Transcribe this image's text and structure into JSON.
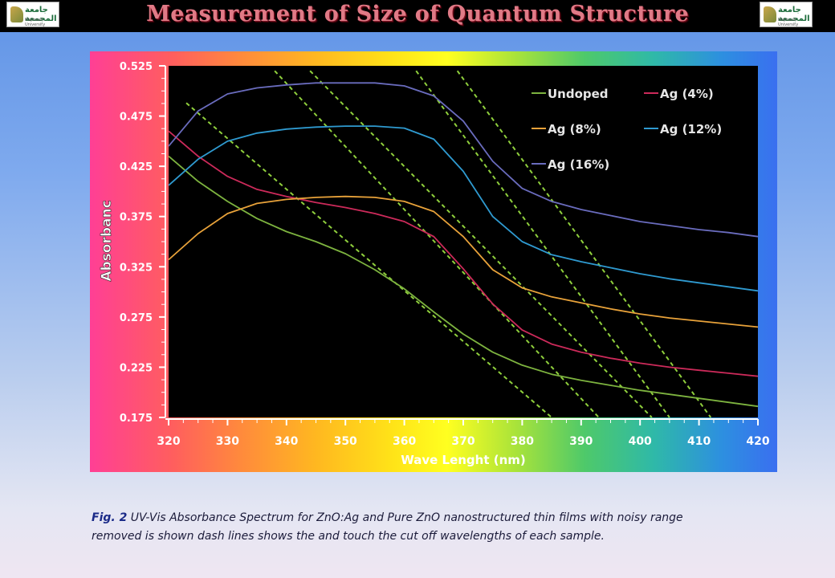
{
  "header": {
    "title": "Measurement of Size of Quantum Structure",
    "logo_text": "جامعة المجمعة",
    "logo_sub": "Majmaah University"
  },
  "chart_data": {
    "type": "line",
    "xlabel": "Wave Lenght  (nm)",
    "ylabel": "Absorbanc",
    "xlim": [
      320,
      420
    ],
    "ylim": [
      0.175,
      0.525
    ],
    "xticks": [
      "320",
      "330",
      "340",
      "350",
      "360",
      "370",
      "380",
      "390",
      "400",
      "410",
      "420"
    ],
    "yticks": [
      "0.525",
      "0.475",
      "0.425",
      "0.375",
      "0.325",
      "0.275",
      "0.225",
      "0.175"
    ],
    "legend_position": "top-right",
    "x": [
      320,
      325,
      330,
      335,
      340,
      345,
      350,
      355,
      360,
      365,
      370,
      375,
      380,
      385,
      390,
      395,
      400,
      405,
      410,
      415,
      420
    ],
    "series": [
      {
        "name": "Undoped",
        "color": "#7db33f",
        "values": [
          0.435,
          0.41,
          0.39,
          0.373,
          0.36,
          0.35,
          0.338,
          0.322,
          0.303,
          0.28,
          0.258,
          0.24,
          0.227,
          0.218,
          0.212,
          0.207,
          0.202,
          0.198,
          0.194,
          0.19,
          0.186
        ]
      },
      {
        "name": "Ag (4%)",
        "color": "#cc2a5a",
        "values": [
          0.46,
          0.435,
          0.415,
          0.402,
          0.395,
          0.389,
          0.384,
          0.378,
          0.37,
          0.355,
          0.323,
          0.288,
          0.262,
          0.248,
          0.24,
          0.234,
          0.229,
          0.225,
          0.222,
          0.219,
          0.216
        ]
      },
      {
        "name": "Ag (8%)",
        "color": "#e8a23a",
        "values": [
          0.332,
          0.358,
          0.378,
          0.388,
          0.392,
          0.394,
          0.395,
          0.394,
          0.39,
          0.38,
          0.355,
          0.322,
          0.304,
          0.295,
          0.289,
          0.283,
          0.278,
          0.274,
          0.271,
          0.268,
          0.265
        ]
      },
      {
        "name": "Ag (12%)",
        "color": "#2f9ad0",
        "values": [
          0.406,
          0.432,
          0.45,
          0.458,
          0.462,
          0.464,
          0.465,
          0.465,
          0.463,
          0.452,
          0.42,
          0.375,
          0.35,
          0.337,
          0.33,
          0.324,
          0.318,
          0.313,
          0.309,
          0.305,
          0.301
        ]
      },
      {
        "name": "Ag (16%)",
        "color": "#6a6cbe",
        "values": [
          0.445,
          0.48,
          0.497,
          0.503,
          0.506,
          0.508,
          0.508,
          0.508,
          0.505,
          0.495,
          0.47,
          0.43,
          0.403,
          0.39,
          0.382,
          0.376,
          0.37,
          0.366,
          0.362,
          0.359,
          0.355
        ]
      }
    ],
    "cutoff_lines": [
      {
        "x1": 323,
        "y1": 0.488,
        "x2": 385,
        "y2": 0.175
      },
      {
        "x1": 338,
        "y1": 0.52,
        "x2": 393,
        "y2": 0.175
      },
      {
        "x1": 344,
        "y1": 0.52,
        "x2": 402,
        "y2": 0.175
      },
      {
        "x1": 362,
        "y1": 0.52,
        "x2": 405,
        "y2": 0.175
      },
      {
        "x1": 369,
        "y1": 0.52,
        "x2": 412,
        "y2": 0.175
      }
    ]
  },
  "caption": {
    "lead": "Fig. 2",
    "text": " UV-Vis Absorbance Spectrum for ZnO:Ag and Pure ZnO nanostructured thin films with noisy range removed is shown dash lines shows the and touch the cut off wavelengths of each sample."
  }
}
